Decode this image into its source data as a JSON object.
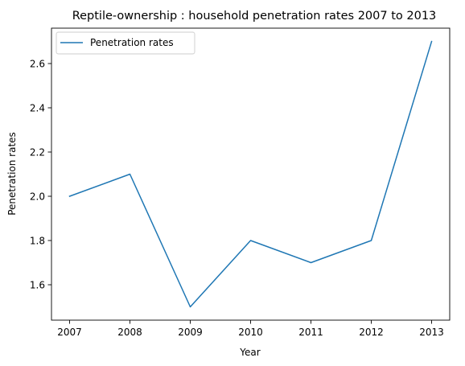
{
  "chart_data": {
    "type": "line",
    "title": "Reptile-ownership : household penetration rates 2007 to 2013",
    "xlabel": "Year",
    "ylabel": "Penetration rates",
    "x": [
      "2007",
      "2008",
      "2009",
      "2010",
      "2011",
      "2012",
      "2013"
    ],
    "series": [
      {
        "name": "Penetration rates",
        "values": [
          2.0,
          2.1,
          1.5,
          1.8,
          1.7,
          1.8,
          2.7
        ],
        "color": "#1f77b4"
      }
    ],
    "ylim": [
      1.44,
      2.76
    ],
    "yticks": [
      1.6,
      1.8,
      2.0,
      2.2,
      2.4,
      2.6
    ],
    "ytick_labels": [
      "1.6",
      "1.8",
      "2.0",
      "2.2",
      "2.4",
      "2.6"
    ],
    "grid": false,
    "legend_position": "top-left"
  }
}
